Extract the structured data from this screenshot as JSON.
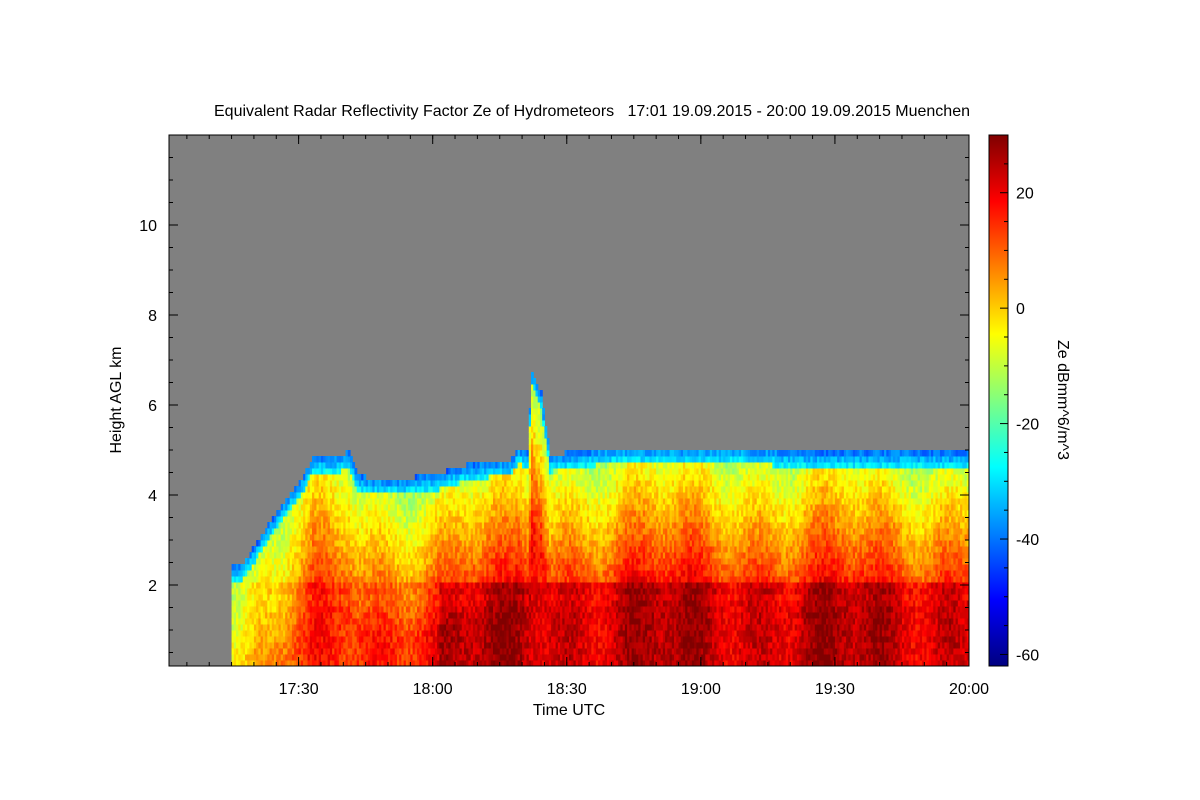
{
  "chart_data": {
    "type": "heatmap",
    "title": "Equivalent Radar Reflectivity Factor Ze of Hydrometeors   17:01 19.09.2015 - 20:00 19.09.2015 Muenchen",
    "xlabel": "Time UTC",
    "ylabel": "Height AGL km",
    "colorbar_label": "Ze dBmm^6/m^3",
    "x_ticks": [
      "17:30",
      "18:00",
      "18:30",
      "19:00",
      "19:30",
      "20:00"
    ],
    "x_tick_minutes": [
      29,
      59,
      89,
      119,
      149,
      179
    ],
    "x_range_minutes": [
      0,
      179
    ],
    "y_ticks": [
      "2",
      "4",
      "6",
      "8",
      "10"
    ],
    "y_tick_values": [
      2,
      4,
      6,
      8,
      10
    ],
    "ylim": [
      0.2,
      12
    ],
    "colorbar_ticks": [
      "20",
      "0",
      "-20",
      "-40",
      "-60"
    ],
    "colorbar_tick_values": [
      20,
      0,
      -20,
      -40,
      -60
    ],
    "colorbar_range": [
      -62,
      30
    ],
    "colormap": "jet",
    "no_data_color": "#808080",
    "echo_top_km": [
      [
        14,
        2.4
      ],
      [
        16,
        2.4
      ],
      [
        19,
        2.8
      ],
      [
        22,
        3.3
      ],
      [
        25,
        3.7
      ],
      [
        28,
        4.1
      ],
      [
        30,
        4.4
      ],
      [
        32,
        4.8
      ],
      [
        38,
        4.8
      ],
      [
        40,
        4.9
      ],
      [
        42,
        4.4
      ],
      [
        45,
        4.3
      ],
      [
        52,
        4.3
      ],
      [
        60,
        4.4
      ],
      [
        66,
        4.6
      ],
      [
        72,
        4.7
      ],
      [
        76,
        4.7
      ],
      [
        78,
        5.0
      ],
      [
        80,
        4.9
      ],
      [
        81,
        6.7
      ],
      [
        83,
        6.2
      ],
      [
        85,
        4.8
      ],
      [
        90,
        4.9
      ],
      [
        100,
        5.0
      ],
      [
        110,
        5.0
      ],
      [
        120,
        5.0
      ],
      [
        130,
        5.0
      ],
      [
        140,
        4.9
      ],
      [
        150,
        4.9
      ],
      [
        160,
        4.9
      ],
      [
        170,
        4.9
      ],
      [
        179,
        4.9
      ]
    ],
    "max_ze_dbz": 30
  }
}
